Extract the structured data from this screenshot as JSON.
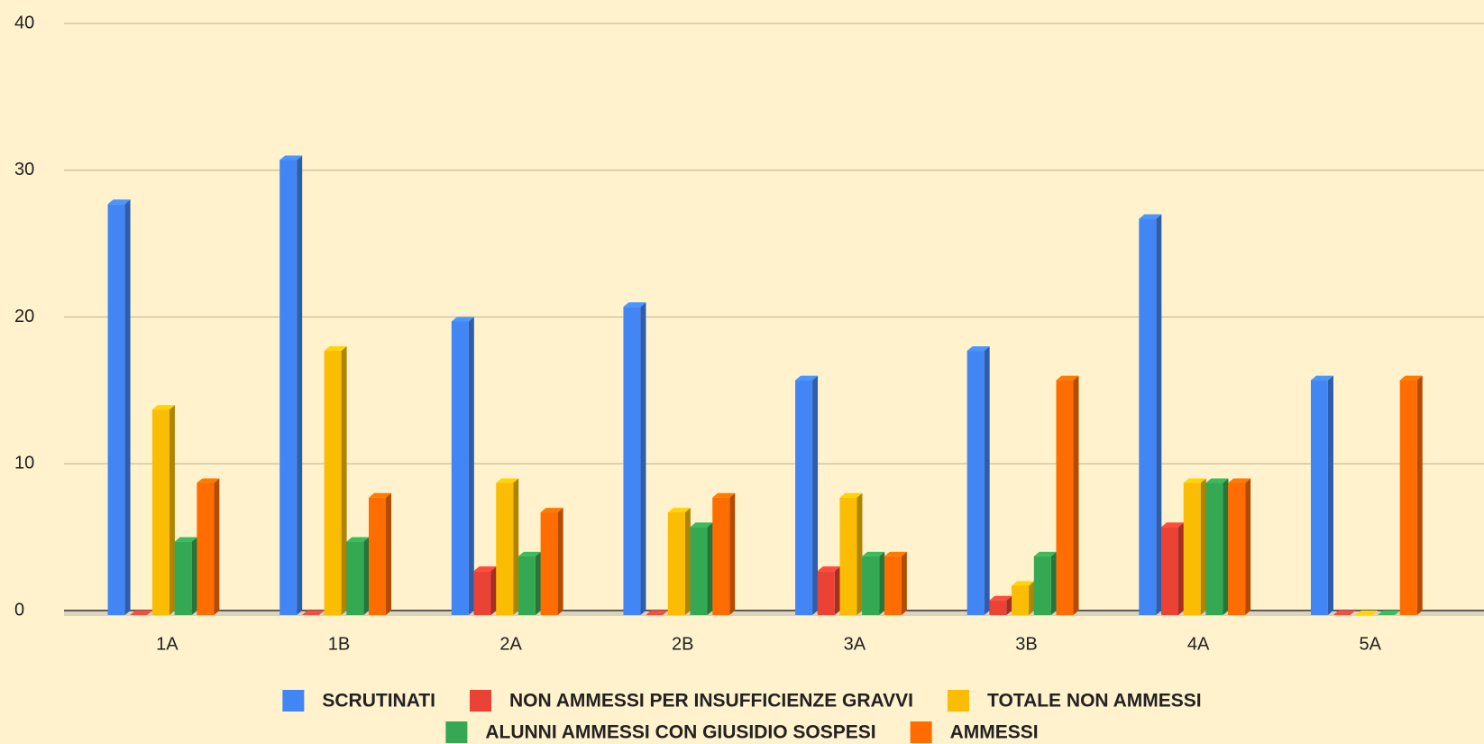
{
  "chart_data": {
    "type": "bar",
    "categories": [
      "1A",
      "1B",
      "2A",
      "2B",
      "3A",
      "3B",
      "4A",
      "5A"
    ],
    "series": [
      {
        "name": "SCRUTINATI",
        "color": "#4285f4",
        "values": [
          28,
          31,
          20,
          21,
          16,
          18,
          27,
          16
        ]
      },
      {
        "name": "NON AMMESSI PER INSUFFICIENZE GRAVVI",
        "color": "#ea4335",
        "values": [
          0,
          0,
          3,
          0,
          3,
          1,
          6,
          0
        ]
      },
      {
        "name": "TOTALE NON AMMESSI",
        "color": "#fbbc04",
        "values": [
          14,
          18,
          9,
          7,
          8,
          2,
          9,
          0
        ]
      },
      {
        "name": "ALUNNI AMMESSI CON GIUSIDIO SOSPESI",
        "color": "#34a853",
        "values": [
          5,
          5,
          4,
          6,
          4,
          4,
          9,
          0
        ]
      },
      {
        "name": "AMMESSI",
        "color": "#ff6d01",
        "values": [
          9,
          8,
          7,
          8,
          4,
          16,
          9,
          16
        ]
      }
    ],
    "ylim": [
      0,
      40
    ],
    "yticks": [
      0,
      10,
      20,
      30,
      40
    ],
    "grid": true,
    "legend": "bottom"
  }
}
